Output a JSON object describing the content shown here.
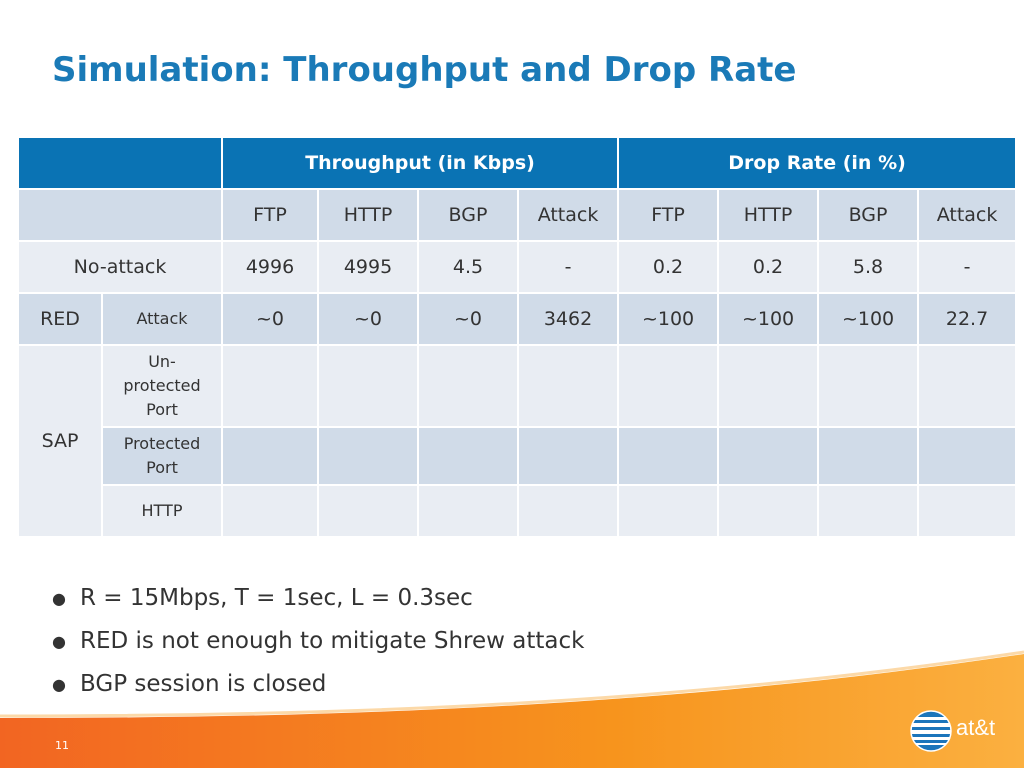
{
  "slide": {
    "title": "Simulation: Throughput and Drop Rate",
    "page_number": "11",
    "logo_text": "at&t"
  },
  "table": {
    "group_headers": [
      "Throughput (in Kbps)",
      "Drop Rate (in %)"
    ],
    "columns": [
      "FTP",
      "HTTP",
      "BGP",
      "Attack",
      "FTP",
      "HTTP",
      "BGP",
      "Attack"
    ],
    "rows": {
      "no_attack": {
        "label": "No-attack",
        "values": [
          "4996",
          "4995",
          "4.5",
          "-",
          "0.2",
          "0.2",
          "5.8",
          "-"
        ]
      },
      "red": {
        "label": "RED",
        "sublabel": "Attack",
        "values": [
          "~0",
          "~0",
          "~0",
          "3462",
          "~100",
          "~100",
          "~100",
          "22.7"
        ]
      },
      "sap": {
        "label": "SAP",
        "sublabels": [
          "Un-\nprotected\nPort",
          "Protected\nPort",
          "HTTP"
        ]
      }
    }
  },
  "bullets": [
    "R = 15Mbps, T = 1sec, L = 0.3sec",
    "RED is not enough to mitigate Shrew attack",
    "BGP session is closed"
  ],
  "colors": {
    "title": "#1a7ab7",
    "header_bg": "#0a73b4",
    "row_dark": "#d0dbe8",
    "row_light": "#e9edf3",
    "wave": "#f7941d"
  }
}
